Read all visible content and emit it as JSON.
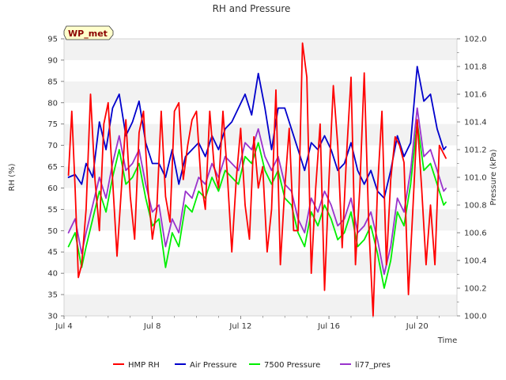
{
  "chart_data": {
    "type": "line",
    "title": "RH and Pressure",
    "site_label": "WP_met",
    "xlabel": "Time",
    "ylabel_left": "RH (%)",
    "ylabel_right": "Pressure (kPa)",
    "x_domain": [
      "Jul 4",
      "Jul 21"
    ],
    "x_ticks": [
      "Jul 4",
      "Jul 8",
      "Jul 12",
      "Jul 16",
      "Jul 20"
    ],
    "x_tick_days": [
      4,
      8,
      12,
      16,
      20
    ],
    "ylim_left": [
      30,
      95
    ],
    "yticks_left": [
      30,
      35,
      40,
      45,
      50,
      55,
      60,
      65,
      70,
      75,
      80,
      85,
      90,
      95
    ],
    "ylim_right": [
      100.0,
      102.0
    ],
    "yticks_right": [
      100.0,
      100.2,
      100.4,
      100.6,
      100.8,
      101.0,
      101.2,
      101.4,
      101.6,
      101.8,
      102.0
    ],
    "grid": "horizontal alternating bands",
    "legend_position": "bottom",
    "series": [
      {
        "name": "HMP RH",
        "axis": "left",
        "color": "#ff0000",
        "x": [
          4.2,
          4.35,
          4.5,
          4.65,
          4.8,
          5.0,
          5.2,
          5.4,
          5.6,
          5.8,
          6.0,
          6.2,
          6.4,
          6.6,
          6.8,
          7.0,
          7.2,
          7.4,
          7.6,
          7.8,
          8.0,
          8.2,
          8.4,
          8.6,
          8.8,
          9.0,
          9.2,
          9.4,
          9.6,
          9.8,
          10.0,
          10.2,
          10.4,
          10.6,
          10.8,
          11.0,
          11.2,
          11.4,
          11.6,
          11.8,
          12.0,
          12.2,
          12.4,
          12.6,
          12.8,
          13.0,
          13.2,
          13.4,
          13.6,
          13.8,
          14.0,
          14.2,
          14.4,
          14.6,
          14.8,
          15.0,
          15.2,
          15.4,
          15.6,
          15.8,
          16.0,
          16.2,
          16.4,
          16.6,
          16.8,
          17.0,
          17.2,
          17.4,
          17.6,
          17.8,
          18.0,
          18.2,
          18.4,
          18.6,
          18.8,
          19.0,
          19.2,
          19.4,
          19.6,
          19.8,
          20.0,
          20.2,
          20.4,
          20.6,
          20.8,
          21.0,
          21.2,
          21.3
        ],
        "values": [
          63,
          78,
          60,
          39,
          42,
          55,
          82,
          62,
          50,
          75,
          80,
          62,
          44,
          60,
          76,
          58,
          48,
          73,
          78,
          60,
          48,
          55,
          78,
          58,
          52,
          78,
          80,
          62,
          70,
          76,
          78,
          62,
          55,
          78,
          65,
          60,
          78,
          63,
          45,
          62,
          74,
          56,
          48,
          72,
          60,
          65,
          45,
          55,
          83,
          42,
          60,
          74,
          50,
          50,
          94,
          86,
          40,
          60,
          75,
          36,
          62,
          84,
          70,
          46,
          68,
          86,
          42,
          60,
          87,
          52,
          30,
          60,
          78,
          42,
          62,
          72,
          70,
          66,
          35,
          55,
          76,
          60,
          42,
          56,
          42,
          70,
          68,
          67
        ]
      },
      {
        "name": "Air Pressure",
        "axis": "right",
        "color": "#0000cc",
        "x": [
          4.2,
          4.5,
          4.8,
          5.0,
          5.3,
          5.6,
          5.9,
          6.2,
          6.5,
          6.8,
          7.1,
          7.4,
          7.7,
          8.0,
          8.3,
          8.6,
          8.9,
          9.2,
          9.5,
          9.8,
          10.1,
          10.4,
          10.7,
          11.0,
          11.3,
          11.6,
          11.9,
          12.2,
          12.5,
          12.8,
          13.1,
          13.4,
          13.7,
          14.0,
          14.3,
          14.6,
          14.9,
          15.2,
          15.5,
          15.8,
          16.1,
          16.4,
          16.7,
          17.0,
          17.3,
          17.6,
          17.9,
          18.2,
          18.5,
          18.8,
          19.1,
          19.4,
          19.7,
          20.0,
          20.3,
          20.6,
          20.9,
          21.2,
          21.3
        ],
        "values": [
          101.0,
          101.02,
          100.95,
          101.1,
          101.0,
          101.4,
          101.2,
          101.5,
          101.6,
          101.3,
          101.4,
          101.55,
          101.25,
          101.1,
          101.1,
          101.0,
          101.2,
          100.95,
          101.15,
          101.2,
          101.25,
          101.15,
          101.3,
          101.2,
          101.35,
          101.4,
          101.5,
          101.6,
          101.45,
          101.75,
          101.5,
          101.2,
          101.5,
          101.5,
          101.35,
          101.2,
          101.05,
          101.25,
          101.2,
          101.3,
          101.2,
          101.05,
          101.1,
          101.25,
          101.05,
          100.95,
          101.05,
          100.9,
          100.85,
          101.05,
          101.3,
          101.15,
          101.25,
          101.8,
          101.55,
          101.6,
          101.35,
          101.2,
          101.22
        ]
      },
      {
        "name": "7500 Pressure",
        "axis": "right",
        "color": "#00ee00",
        "x": [
          4.2,
          4.5,
          4.8,
          5.0,
          5.3,
          5.6,
          5.9,
          6.2,
          6.5,
          6.8,
          7.1,
          7.4,
          7.7,
          8.0,
          8.3,
          8.6,
          8.9,
          9.2,
          9.5,
          9.8,
          10.1,
          10.4,
          10.7,
          11.0,
          11.3,
          11.6,
          11.9,
          12.2,
          12.5,
          12.8,
          13.1,
          13.4,
          13.7,
          14.0,
          14.3,
          14.6,
          14.9,
          15.2,
          15.5,
          15.8,
          16.1,
          16.4,
          16.7,
          17.0,
          17.3,
          17.6,
          17.9,
          18.2,
          18.5,
          18.8,
          19.1,
          19.4,
          19.7,
          20.0,
          20.3,
          20.6,
          20.9,
          21.2,
          21.3
        ],
        "values": [
          100.5,
          100.6,
          100.35,
          100.5,
          100.7,
          100.9,
          100.75,
          101.0,
          101.2,
          100.95,
          101.0,
          101.1,
          100.85,
          100.65,
          100.7,
          100.35,
          100.6,
          100.5,
          100.8,
          100.75,
          100.9,
          100.85,
          101.0,
          100.9,
          101.05,
          101.0,
          100.95,
          101.15,
          101.1,
          101.25,
          101.05,
          100.95,
          101.05,
          100.85,
          100.8,
          100.6,
          100.5,
          100.75,
          100.65,
          100.8,
          100.7,
          100.55,
          100.6,
          100.75,
          100.5,
          100.55,
          100.65,
          100.45,
          100.2,
          100.4,
          100.75,
          100.65,
          100.95,
          101.4,
          101.05,
          101.1,
          100.95,
          100.8,
          100.82
        ]
      },
      {
        "name": "li77_pres",
        "axis": "right",
        "color": "#9933cc",
        "x": [
          4.2,
          4.5,
          4.8,
          5.0,
          5.3,
          5.6,
          5.9,
          6.2,
          6.5,
          6.8,
          7.1,
          7.4,
          7.7,
          8.0,
          8.3,
          8.6,
          8.9,
          9.2,
          9.5,
          9.8,
          10.1,
          10.4,
          10.7,
          11.0,
          11.3,
          11.6,
          11.9,
          12.2,
          12.5,
          12.8,
          13.1,
          13.4,
          13.7,
          14.0,
          14.3,
          14.6,
          14.9,
          15.2,
          15.5,
          15.8,
          16.1,
          16.4,
          16.7,
          17.0,
          17.3,
          17.6,
          17.9,
          18.2,
          18.5,
          18.8,
          19.1,
          19.4,
          19.7,
          20.0,
          20.3,
          20.6,
          20.9,
          21.2,
          21.3
        ],
        "values": [
          100.6,
          100.7,
          100.45,
          100.6,
          100.8,
          101.0,
          100.85,
          101.1,
          101.3,
          101.05,
          101.1,
          101.2,
          100.95,
          100.75,
          100.8,
          100.5,
          100.7,
          100.6,
          100.9,
          100.85,
          101.0,
          100.95,
          101.1,
          101.0,
          101.15,
          101.1,
          101.05,
          101.25,
          101.2,
          101.35,
          101.15,
          101.05,
          101.15,
          100.95,
          100.9,
          100.7,
          100.6,
          100.85,
          100.75,
          100.9,
          100.8,
          100.65,
          100.7,
          100.85,
          100.6,
          100.65,
          100.75,
          100.55,
          100.3,
          100.5,
          100.85,
          100.75,
          101.05,
          101.5,
          101.15,
          101.2,
          101.05,
          100.9,
          100.92
        ]
      }
    ]
  }
}
